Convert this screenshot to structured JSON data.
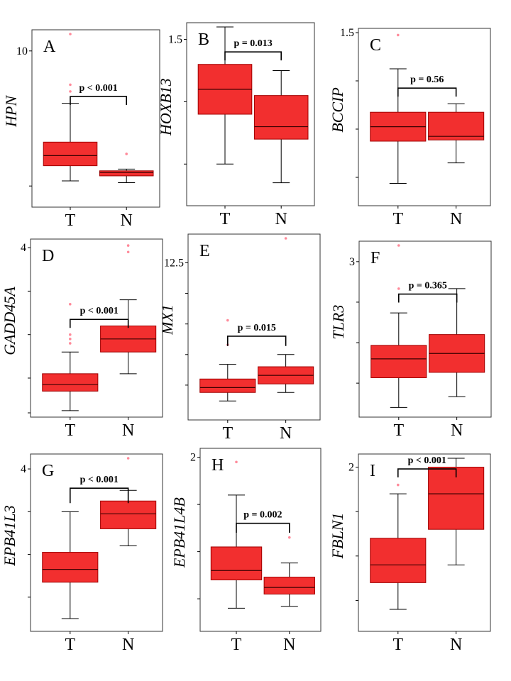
{
  "chart_data": [
    {
      "type": "box",
      "panel": "A",
      "ylabel": "HPN",
      "categories": [
        "T",
        "N"
      ],
      "yaxis": {
        "min": 1.0,
        "max": 11.0,
        "ticks": [
          {
            "value": 10,
            "label": "10"
          },
          {
            "value": 2,
            "label": ""
          }
        ]
      },
      "series": [
        {
          "name": "T",
          "whisker_low": 2.3,
          "q1": 3.2,
          "median": 3.8,
          "q3": 4.6,
          "whisker_high": 6.9,
          "outliers": [
            7.6,
            8.0,
            11.0
          ]
        },
        {
          "name": "N",
          "whisker_low": 2.2,
          "q1": 2.6,
          "median": 2.8,
          "q3": 2.9,
          "whisker_high": 3.0,
          "outliers": [
            3.9
          ]
        }
      ],
      "comparison": {
        "label": "p < 0.001",
        "y_bracket": 7.3,
        "y_drop": 6.9
      }
    },
    {
      "type": "box",
      "panel": "B",
      "ylabel": "HOXB13",
      "categories": [
        "T",
        "N"
      ],
      "yaxis": {
        "min": 0.2,
        "max": 1.6,
        "ticks": [
          {
            "value": 1.5,
            "label": "1.5"
          },
          {
            "value": 1.0,
            "label": ""
          },
          {
            "value": 0.5,
            "label": ""
          }
        ]
      },
      "series": [
        {
          "name": "T",
          "whisker_low": 0.5,
          "q1": 0.9,
          "median": 1.1,
          "q3": 1.3,
          "whisker_high": 1.6,
          "outliers": []
        },
        {
          "name": "N",
          "whisker_low": 0.35,
          "q1": 0.7,
          "median": 0.8,
          "q3": 1.05,
          "whisker_high": 1.25,
          "outliers": []
        }
      ],
      "comparison": {
        "label": "p = 0.013",
        "y_bracket": 1.4,
        "y_drop": 1.34
      }
    },
    {
      "type": "box",
      "panel": "C",
      "ylabel": "BCCIP",
      "categories": [
        "T",
        "N"
      ],
      "yaxis": {
        "min": 0.1,
        "max": 1.5,
        "ticks": [
          {
            "value": 1.5,
            "label": "1.5"
          },
          {
            "value": 1.1,
            "label": ""
          },
          {
            "value": 0.7,
            "label": ""
          },
          {
            "value": 0.3,
            "label": ""
          }
        ]
      },
      "series": [
        {
          "name": "T",
          "whisker_low": 0.25,
          "q1": 0.6,
          "median": 0.72,
          "q3": 0.84,
          "whisker_high": 1.2,
          "outliers": [
            1.48
          ]
        },
        {
          "name": "N",
          "whisker_low": 0.42,
          "q1": 0.61,
          "median": 0.64,
          "q3": 0.84,
          "whisker_high": 0.91,
          "outliers": []
        }
      ],
      "comparison": {
        "label": "p = 0.56",
        "y_bracket": 1.04,
        "y_drop": 0.97
      }
    },
    {
      "type": "box",
      "panel": "D",
      "ylabel": "GADD45A",
      "categories": [
        "T",
        "N"
      ],
      "yaxis": {
        "min": 0.2,
        "max": 4.1,
        "ticks": [
          {
            "value": 4,
            "label": "4"
          },
          {
            "value": 3,
            "label": ""
          },
          {
            "value": 2,
            "label": ""
          },
          {
            "value": 1,
            "label": ""
          },
          {
            "value": 0.2,
            "label": ""
          }
        ]
      },
      "series": [
        {
          "name": "T",
          "whisker_low": 0.25,
          "q1": 0.7,
          "median": 0.85,
          "q3": 1.1,
          "whisker_high": 1.6,
          "outliers": [
            1.8,
            1.9,
            2.0,
            2.7
          ]
        },
        {
          "name": "N",
          "whisker_low": 1.1,
          "q1": 1.6,
          "median": 1.9,
          "q3": 2.2,
          "whisker_high": 2.8,
          "outliers": [
            3.9,
            4.05
          ]
        }
      ],
      "comparison": {
        "label": "p < 0.001",
        "y_bracket": 2.35,
        "y_drop": 2.2
      }
    },
    {
      "type": "box",
      "panel": "E",
      "ylabel": "MX1",
      "categories": [
        "T",
        "N"
      ],
      "yaxis": {
        "min": 0.0,
        "max": 14.5,
        "ticks": [
          {
            "value": 12.5,
            "label": "12.5"
          },
          {
            "value": 10.0,
            "label": ""
          },
          {
            "value": 7.5,
            "label": ""
          },
          {
            "value": 5.0,
            "label": ""
          },
          {
            "value": 2.5,
            "label": ""
          }
        ]
      },
      "series": [
        {
          "name": "T",
          "whisker_low": 1.2,
          "q1": 1.9,
          "median": 2.3,
          "q3": 3.0,
          "whisker_high": 4.2,
          "outliers": [
            5.8,
            7.8
          ]
        },
        {
          "name": "N",
          "whisker_low": 1.9,
          "q1": 2.6,
          "median": 3.3,
          "q3": 4.0,
          "whisker_high": 5.0,
          "outliers": [
            14.5
          ]
        }
      ],
      "comparison": {
        "label": "p = 0.015",
        "y_bracket": 6.5,
        "y_drop": 5.7
      }
    },
    {
      "type": "box",
      "panel": "F",
      "ylabel": "TLR3",
      "categories": [
        "T",
        "N"
      ],
      "yaxis": {
        "min": 0.2,
        "max": 3.3,
        "ticks": [
          {
            "value": 3.0,
            "label": "3"
          },
          {
            "value": 2.25,
            "label": ""
          },
          {
            "value": 1.5,
            "label": ""
          },
          {
            "value": 0.75,
            "label": ""
          }
        ]
      },
      "series": [
        {
          "name": "T",
          "whisker_low": 0.3,
          "q1": 0.85,
          "median": 1.2,
          "q3": 1.45,
          "whisker_high": 2.05,
          "outliers": [
            2.5,
            3.3
          ]
        },
        {
          "name": "N",
          "whisker_low": 0.5,
          "q1": 0.95,
          "median": 1.3,
          "q3": 1.65,
          "whisker_high": 2.5,
          "outliers": []
        }
      ],
      "comparison": {
        "label": "p = 0.365",
        "y_bracket": 2.4,
        "y_drop": 2.25
      }
    },
    {
      "type": "box",
      "panel": "G",
      "ylabel": "EPB41L3",
      "categories": [
        "T",
        "N"
      ],
      "yaxis": {
        "min": 0.3,
        "max": 4.25,
        "ticks": [
          {
            "value": 4,
            "label": "4"
          },
          {
            "value": 3,
            "label": ""
          },
          {
            "value": 2,
            "label": ""
          },
          {
            "value": 1,
            "label": ""
          }
        ]
      },
      "series": [
        {
          "name": "T",
          "whisker_low": 0.5,
          "q1": 1.35,
          "median": 1.65,
          "q3": 2.05,
          "whisker_high": 3.0,
          "outliers": []
        },
        {
          "name": "N",
          "whisker_low": 2.2,
          "q1": 2.6,
          "median": 2.95,
          "q3": 3.25,
          "whisker_high": 3.5,
          "outliers": [
            4.25
          ]
        }
      ],
      "comparison": {
        "label": "p < 0.001",
        "y_bracket": 3.55,
        "y_drop": 3.2
      }
    },
    {
      "type": "box",
      "panel": "H",
      "ylabel": "EPB41L4B",
      "categories": [
        "T",
        "N"
      ],
      "yaxis": {
        "min": 0.2,
        "max": 2.05,
        "ticks": [
          {
            "value": 2.0,
            "label": "2"
          },
          {
            "value": 1.5,
            "label": ""
          },
          {
            "value": 1.0,
            "label": ""
          },
          {
            "value": 0.5,
            "label": ""
          }
        ]
      },
      "series": [
        {
          "name": "T",
          "whisker_low": 0.4,
          "q1": 0.7,
          "median": 0.8,
          "q3": 1.05,
          "whisker_high": 1.6,
          "outliers": [
            1.95
          ]
        },
        {
          "name": "N",
          "whisker_low": 0.42,
          "q1": 0.55,
          "median": 0.62,
          "q3": 0.73,
          "whisker_high": 0.88,
          "outliers": [
            1.15
          ]
        }
      ],
      "comparison": {
        "label": "p = 0.002",
        "y_bracket": 1.3,
        "y_drop": 1.2
      }
    },
    {
      "type": "box",
      "panel": "I",
      "ylabel": "FBLN1",
      "categories": [
        "T",
        "N"
      ],
      "yaxis": {
        "min": 0.2,
        "max": 2.1,
        "ticks": [
          {
            "value": 2.0,
            "label": "2"
          },
          {
            "value": 1.5,
            "label": ""
          },
          {
            "value": 1.0,
            "label": ""
          },
          {
            "value": 0.5,
            "label": ""
          }
        ]
      },
      "series": [
        {
          "name": "T",
          "whisker_low": 0.4,
          "q1": 0.7,
          "median": 0.9,
          "q3": 1.2,
          "whisker_high": 1.7,
          "outliers": [
            1.8
          ]
        },
        {
          "name": "N",
          "whisker_low": 0.9,
          "q1": 1.3,
          "median": 1.7,
          "q3": 2.0,
          "whisker_high": 2.1,
          "outliers": []
        }
      ],
      "comparison": {
        "label": "p < 0.001",
        "y_bracket": 1.98,
        "y_drop": 1.94
      }
    }
  ],
  "colors": {
    "box_fill": "#f22f2f",
    "box_stroke": "#a00000",
    "outlier": "#ff8a9a",
    "line": "#000000",
    "frame": "#333333"
  }
}
